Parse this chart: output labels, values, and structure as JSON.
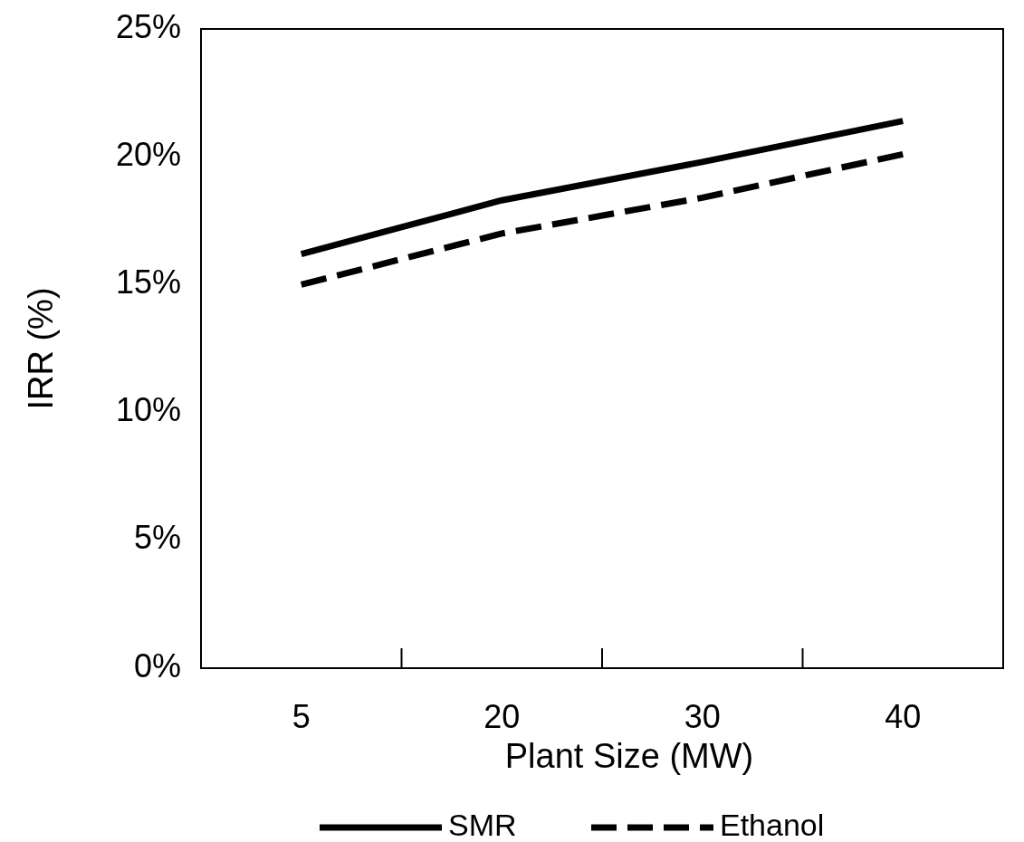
{
  "chart_data": {
    "type": "line",
    "xlabel": "Plant Size (MW)",
    "ylabel": "IRR (%)",
    "categories": [
      "5",
      "20",
      "30",
      "40"
    ],
    "series": [
      {
        "name": "SMR",
        "color": "#000000",
        "line_style": "solid",
        "values": [
          16.2,
          18.3,
          19.8,
          21.4
        ]
      },
      {
        "name": "Ethanol",
        "color": "#000000",
        "line_style": "dashed",
        "values": [
          15.0,
          17.0,
          18.4,
          20.1
        ]
      }
    ],
    "ylim": [
      0,
      25
    ],
    "yticks": [
      {
        "value": 0,
        "label": "0%"
      },
      {
        "value": 5,
        "label": "5%"
      },
      {
        "value": 10,
        "label": "10%"
      },
      {
        "value": 15,
        "label": "15%"
      },
      {
        "value": 20,
        "label": "20%"
      },
      {
        "value": 25,
        "label": "25%"
      }
    ],
    "grid": false,
    "legend": "bottom"
  }
}
